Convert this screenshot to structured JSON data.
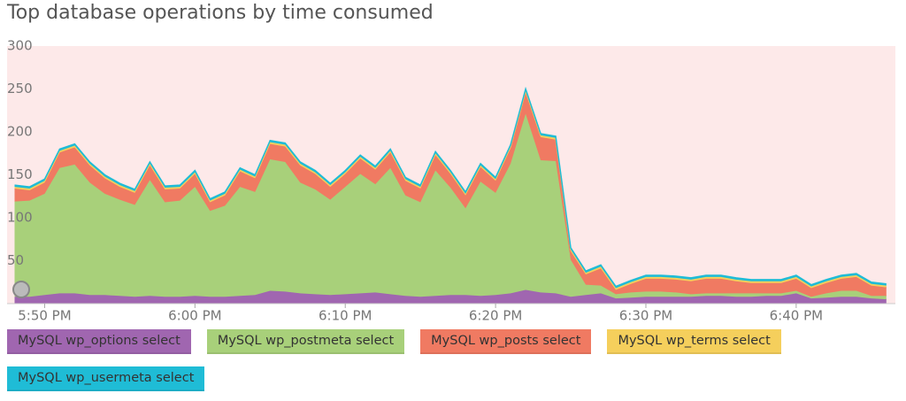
{
  "chart_data": {
    "type": "stacked-area",
    "title": "Top database operations by time consumed",
    "x": [
      48,
      49,
      50,
      51,
      52,
      53,
      54,
      55,
      56,
      57,
      58,
      59,
      60,
      61,
      62,
      63,
      64,
      65,
      66,
      67,
      68,
      69,
      70,
      71,
      72,
      73,
      74,
      75,
      76,
      77,
      78,
      79,
      80,
      81,
      82,
      83,
      84,
      85,
      86,
      87,
      88,
      89,
      90,
      91,
      92,
      93,
      94,
      95,
      96,
      97,
      98,
      99,
      100,
      101,
      102,
      103,
      104,
      105,
      106
    ],
    "xlim": [
      47.5,
      106.6
    ],
    "xticks": [
      {
        "value": 50,
        "label": "5:50 PM"
      },
      {
        "value": 60,
        "label": "6:00 PM"
      },
      {
        "value": 70,
        "label": "6:10 PM"
      },
      {
        "value": 80,
        "label": "6:20 PM"
      },
      {
        "value": 90,
        "label": "6:30 PM"
      },
      {
        "value": 100,
        "label": "6:40 PM"
      }
    ],
    "ylim": [
      0,
      300
    ],
    "yticks": [
      50,
      100,
      150,
      200,
      250,
      300
    ],
    "grid": false,
    "series": [
      {
        "name": "MySQL wp_options select",
        "color": "#a066b0",
        "values": [
          8,
          8,
          10,
          12,
          12,
          10,
          10,
          9,
          8,
          9,
          8,
          8,
          9,
          8,
          8,
          9,
          10,
          15,
          14,
          12,
          11,
          10,
          11,
          12,
          13,
          11,
          9,
          8,
          9,
          10,
          10,
          9,
          10,
          12,
          16,
          13,
          12,
          8,
          10,
          12,
          6,
          7,
          8,
          8,
          8,
          8,
          9,
          9,
          8,
          8,
          9,
          9,
          12,
          6,
          7,
          8,
          8,
          6,
          5
        ]
      },
      {
        "name": "MySQL wp_postmeta select",
        "color": "#a8d07a",
        "values": [
          111,
          112,
          118,
          146,
          150,
          131,
          118,
          112,
          107,
          135,
          110,
          112,
          127,
          100,
          106,
          127,
          120,
          153,
          151,
          129,
          122,
          111,
          125,
          139,
          126,
          147,
          117,
          110,
          146,
          125,
          101,
          133,
          119,
          151,
          205,
          154,
          154,
          43,
          12,
          9,
          5,
          6,
          6,
          6,
          5,
          3,
          3,
          3,
          4,
          4,
          3,
          3,
          3,
          2,
          5,
          7,
          7,
          3,
          4
        ]
      },
      {
        "name": "MySQL wp_posts select",
        "color": "#f07a62",
        "values": [
          15,
          12,
          13,
          18,
          20,
          20,
          18,
          15,
          14,
          17,
          15,
          14,
          15,
          10,
          12,
          18,
          16,
          18,
          18,
          20,
          18,
          15,
          15,
          18,
          17,
          18,
          17,
          16,
          18,
          16,
          15,
          17,
          14,
          18,
          25,
          27,
          25,
          10,
          12,
          20,
          5,
          10,
          15,
          15,
          15,
          15,
          17,
          17,
          14,
          12,
          12,
          12,
          14,
          10,
          12,
          14,
          16,
          12,
          10
        ]
      },
      {
        "name": "MySQL wp_terms select",
        "color": "#f5cf5c",
        "values": [
          2,
          2,
          2,
          2,
          2,
          2,
          2,
          2,
          2,
          2,
          2,
          2,
          2,
          2,
          2,
          2,
          2,
          2,
          2,
          2,
          2,
          2,
          2,
          2,
          2,
          2,
          2,
          2,
          2,
          2,
          2,
          2,
          2,
          2,
          2,
          2,
          2,
          2,
          2,
          2,
          2,
          2,
          2,
          2,
          2,
          2,
          2,
          2,
          2,
          2,
          2,
          2,
          2,
          2,
          2,
          2,
          2,
          2,
          2
        ]
      },
      {
        "name": "MySQL wp_usermeta select",
        "color": "#1fbcd6",
        "values": [
          2,
          2,
          2,
          2,
          2,
          2,
          2,
          2,
          2,
          2,
          2,
          2,
          2,
          2,
          2,
          2,
          2,
          2,
          2,
          2,
          2,
          2,
          2,
          2,
          2,
          2,
          2,
          2,
          2,
          2,
          2,
          2,
          2,
          2,
          2,
          2,
          2,
          2,
          2,
          2,
          2,
          2,
          2,
          2,
          2,
          2,
          2,
          2,
          2,
          2,
          2,
          2,
          2,
          2,
          2,
          2,
          2,
          2,
          2
        ]
      }
    ]
  }
}
